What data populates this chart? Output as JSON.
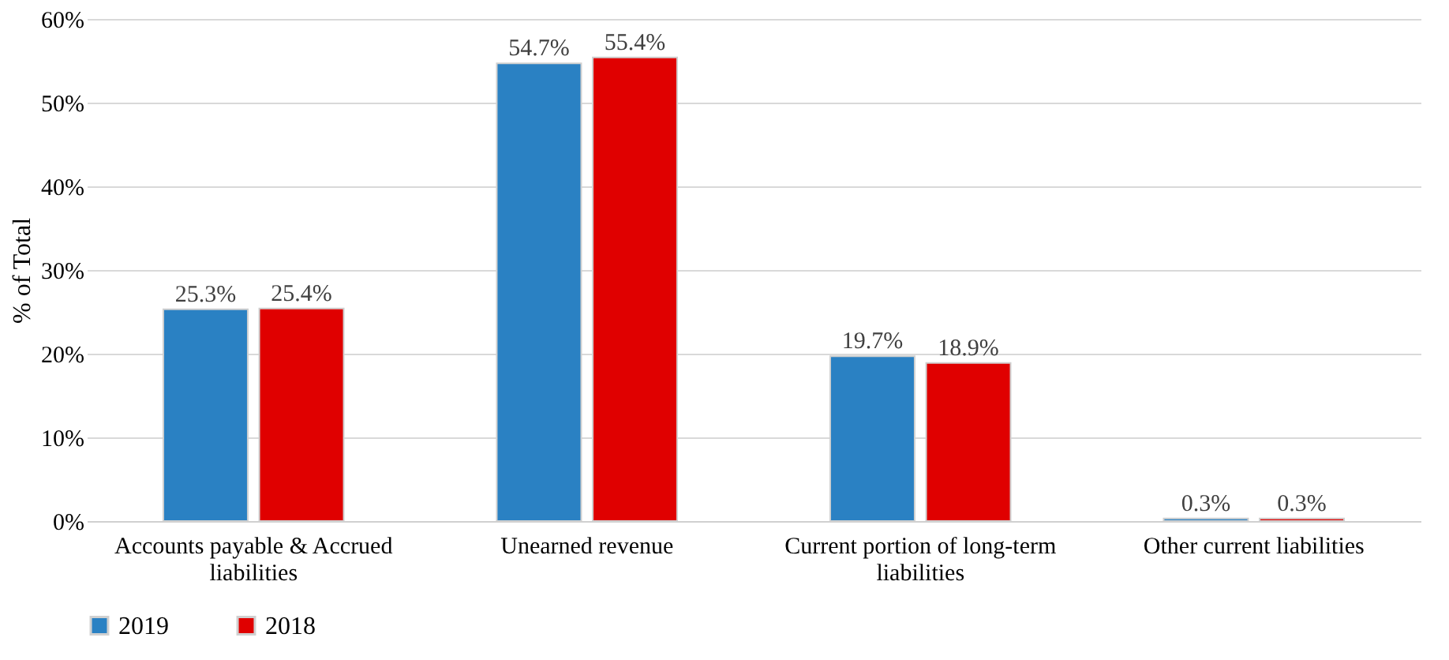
{
  "chart_data": {
    "type": "bar",
    "ylabel": "% of Total",
    "categories": [
      "Accounts payable & Accrued liabilities",
      "Unearned revenue",
      "Current portion of long-term liabilities",
      "Other current liabilities"
    ],
    "series": [
      {
        "name": "2019",
        "color": "#2a81c3",
        "values": [
          25.3,
          54.7,
          19.7,
          0.3
        ],
        "value_labels": [
          "25.3%",
          "54.7%",
          "19.7%",
          "0.3%"
        ]
      },
      {
        "name": "2018",
        "color": "#e00000",
        "values": [
          25.4,
          55.4,
          18.9,
          0.3
        ],
        "value_labels": [
          "25.4%",
          "55.4%",
          "18.9%",
          "0.3%"
        ]
      }
    ],
    "ylim": [
      0,
      60
    ],
    "yticks": [
      {
        "value": 0,
        "label": "0%"
      },
      {
        "value": 10,
        "label": "10%"
      },
      {
        "value": 20,
        "label": "20%"
      },
      {
        "value": 30,
        "label": "30%"
      },
      {
        "value": 40,
        "label": "40%"
      },
      {
        "value": 50,
        "label": "50%"
      },
      {
        "value": 60,
        "label": "60%"
      }
    ],
    "grid": "y",
    "legend": "bottom"
  }
}
